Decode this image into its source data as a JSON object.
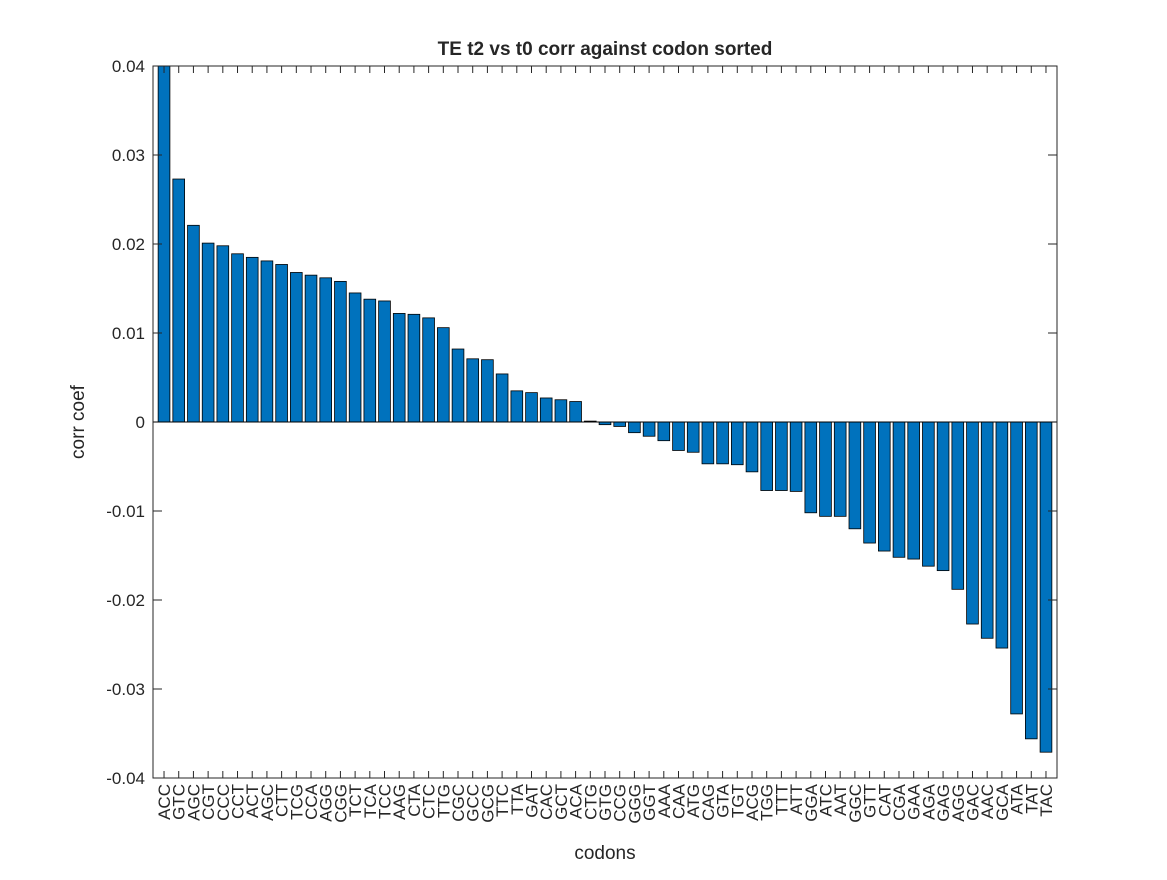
{
  "chart_data": {
    "type": "bar",
    "title": "TE t2 vs t0 corr against codon sorted",
    "xlabel": "codons",
    "ylabel": "corr coef",
    "ylim": [
      -0.04,
      0.04
    ],
    "yticks": [
      -0.04,
      -0.03,
      -0.02,
      -0.01,
      0,
      0.01,
      0.02,
      0.03,
      0.04
    ],
    "ytick_labels": [
      "-0.04",
      "-0.03",
      "-0.02",
      "-0.01",
      "0",
      "0.01",
      "0.02",
      "0.03",
      "0.04"
    ],
    "bar_color": "#0072bd",
    "grid": false,
    "categories": [
      "ACC",
      "GTC",
      "AGC",
      "CGT",
      "CCC",
      "CCT",
      "ACT",
      "AGC",
      "CTT",
      "TCG",
      "CCA",
      "AGG",
      "CGG",
      "TCT",
      "TCA",
      "TCC",
      "AAG",
      "CTA",
      "CTC",
      "TTG",
      "CGC",
      "GCC",
      "GCG",
      "TTC",
      "TTA",
      "GAT",
      "CAC",
      "GCT",
      "ACA",
      "CTG",
      "GTG",
      "CCG",
      "GGG",
      "GGT",
      "AAA",
      "CAA",
      "ATG",
      "CAG",
      "GTA",
      "TGT",
      "ACG",
      "TGG",
      "TTT",
      "ATT",
      "GGA",
      "ATC",
      "AAT",
      "GGC",
      "GTT",
      "CAT",
      "CGA",
      "GAA",
      "AGA",
      "GAG",
      "AGG",
      "GAC",
      "AAC",
      "GCA",
      "ATA",
      "TAT",
      "TAC"
    ],
    "values": [
      0.04,
      0.0273,
      0.0221,
      0.0201,
      0.0198,
      0.0189,
      0.0185,
      0.0181,
      0.0177,
      0.0168,
      0.0165,
      0.0162,
      0.0158,
      0.0145,
      0.0138,
      0.0136,
      0.0122,
      0.0121,
      0.0117,
      0.0106,
      0.0082,
      0.0071,
      0.007,
      0.0054,
      0.0035,
      0.0033,
      0.0027,
      0.0025,
      0.0023,
      0.0001,
      -0.0003,
      -0.0005,
      -0.0012,
      -0.0016,
      -0.0021,
      -0.0032,
      -0.0034,
      -0.0047,
      -0.0047,
      -0.0048,
      -0.0056,
      -0.0077,
      -0.0077,
      -0.0078,
      -0.0102,
      -0.0106,
      -0.0106,
      -0.012,
      -0.0136,
      -0.0145,
      -0.0152,
      -0.0154,
      -0.0162,
      -0.0167,
      -0.0188,
      -0.0227,
      -0.0243,
      -0.0254,
      -0.0328,
      -0.0356,
      -0.0371
    ]
  }
}
